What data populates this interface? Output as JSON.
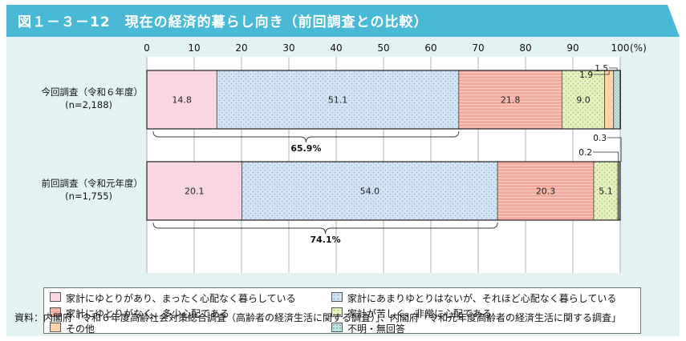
{
  "title": "図１－３－12　現在の経済的暮らし向き（前回調査との比較）",
  "chart_data": {
    "type": "bar",
    "orientation": "horizontal",
    "stacked": true,
    "xlim": [
      0,
      100
    ],
    "x_ticks": [
      0,
      10,
      20,
      30,
      40,
      50,
      60,
      70,
      80,
      90,
      100
    ],
    "unit": "(%)",
    "categories": [
      {
        "label": "今回調査（令和６年度）",
        "n": "(n=2,188)"
      },
      {
        "label": "前回調査（令和元年度）",
        "n": "(n=1,755)"
      }
    ],
    "series": [
      {
        "name": "家計にゆとりがあり、まったく心配なく暮らしている",
        "color": "#f8d7e3",
        "pattern": "solid",
        "values": [
          14.8,
          20.1
        ]
      },
      {
        "name": "家計にあまりゆとりはないが、それほど心配なく暮らしている",
        "color": "#d3e5f5",
        "pattern": "dots",
        "values": [
          51.1,
          54.0
        ]
      },
      {
        "name": "家計にゆとりがなく、多少心配である",
        "color": "#f4a99a",
        "pattern": "hstripes",
        "values": [
          21.8,
          20.3
        ]
      },
      {
        "name": "家計が苦しく、非常に心配である",
        "color": "#e6f1c4",
        "pattern": "greendots",
        "values": [
          9.0,
          5.1
        ]
      },
      {
        "name": "その他",
        "color": "#fbd5a8",
        "pattern": "solid",
        "values": [
          1.9,
          0.2
        ]
      },
      {
        "name": "不明・無回答",
        "color": "#c5e4e4",
        "pattern": "tealdots",
        "values": [
          1.5,
          0.3
        ]
      }
    ],
    "value_labels": [
      [
        "14.8",
        "51.1",
        "21.8",
        "9.0",
        "1.9",
        "1.5"
      ],
      [
        "20.1",
        "54.0",
        "20.3",
        "5.1",
        "0.2",
        "0.3"
      ]
    ],
    "brace_totals": [
      "65.9%",
      "74.1%"
    ]
  },
  "source": "資料：内閣府「令和６年度高齢社会対策総合調査（高齢者の経済生活に関する調査）」、内閣府「令和元年度高齢者の経済生活に関する調査」"
}
